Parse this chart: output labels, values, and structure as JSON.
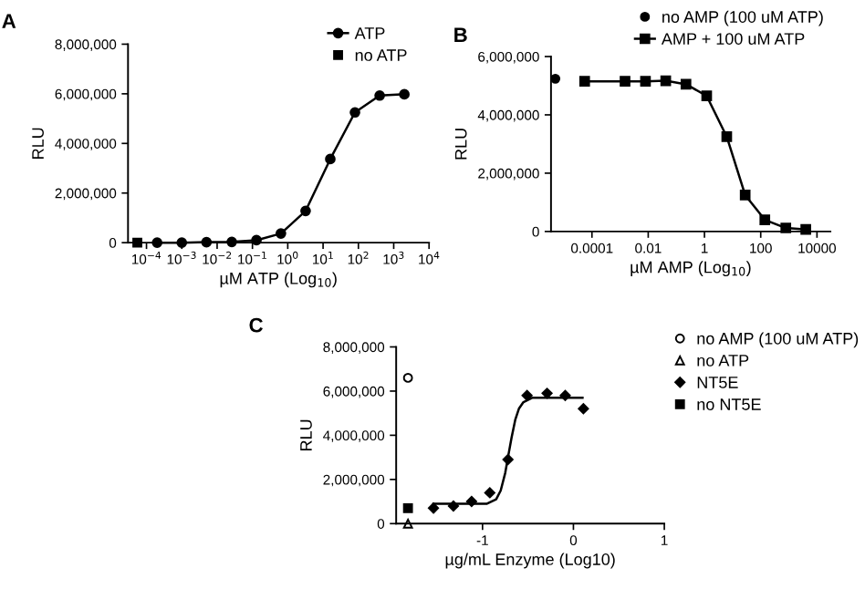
{
  "chart_data": [
    {
      "type": "line",
      "title": "A",
      "xlabel": "µM ATP (Log$_{10}$)",
      "ylabel": "RLU",
      "log": "x",
      "xlim": [
        3e-05,
        10000
      ],
      "ylim": [
        0,
        8000000
      ],
      "xticks": [
        {
          "value": 0.0001,
          "label": "10$^{−4}$"
        },
        {
          "value": 0.001,
          "label": "10$^{−3}$"
        },
        {
          "value": 0.01,
          "label": "10$^{−2}$"
        },
        {
          "value": 0.1,
          "label": "10$^{−1}$"
        },
        {
          "value": 1,
          "label": "10$^{0}$"
        },
        {
          "value": 10,
          "label": "10$^{1}$"
        },
        {
          "value": 100,
          "label": "10$^{2}$"
        },
        {
          "value": 1000,
          "label": "10$^{3}$"
        },
        {
          "value": 10000,
          "label": "10$^{4}$"
        }
      ],
      "yticks": [
        {
          "value": 0,
          "label": "0"
        },
        {
          "value": 2000000,
          "label": "2,000,000"
        },
        {
          "value": 4000000,
          "label": "4,000,000"
        },
        {
          "value": 6000000,
          "label": "6,000,000"
        },
        {
          "value": 8000000,
          "label": "8,000,000"
        }
      ],
      "legend": "top right",
      "grid": false,
      "series": [
        {
          "name": "ATP",
          "marker": "circle",
          "color": "#000000",
          "x": [
            0.0002,
            0.001,
            0.005,
            0.026,
            0.13,
            0.64,
            3.2,
            16,
            80,
            400,
            2000
          ],
          "values": [
            0,
            0,
            20000,
            30000,
            100000,
            370000,
            1280000,
            3370000,
            5250000,
            5930000,
            5980000
          ]
        },
        {
          "name": "no ATP",
          "type": "scatter",
          "marker": "square",
          "color": "#000000",
          "x": [
            5.5e-05
          ],
          "values": [
            0
          ]
        }
      ]
    },
    {
      "type": "line",
      "title": "B",
      "xlabel": "µM AMP (Log$_{10}$)",
      "ylabel": "RLU",
      "log": "x",
      "xlim": [
        3.5e-06,
        30000
      ],
      "ylim": [
        0,
        6000000
      ],
      "xticks": [
        {
          "value": 0.0001,
          "label": "0.0001"
        },
        {
          "value": 0.01,
          "label": "0.01"
        },
        {
          "value": 1,
          "label": "1"
        },
        {
          "value": 100,
          "label": "100"
        },
        {
          "value": 10000,
          "label": "10000"
        }
      ],
      "yticks": [
        {
          "value": 0,
          "label": "0"
        },
        {
          "value": 2000000,
          "label": "2,000,000"
        },
        {
          "value": 4000000,
          "label": "4,000,000"
        },
        {
          "value": 6000000,
          "label": "6,000,000"
        }
      ],
      "legend": "top right",
      "grid": false,
      "series": [
        {
          "name": "no AMP (100 uM ATP)",
          "type": "scatter",
          "marker": "circle",
          "color": "#000000",
          "x": [
            5e-06
          ],
          "values": [
            5240000
          ]
        },
        {
          "name": "AMP + 100 uM ATP",
          "marker": "square",
          "color": "#000000",
          "x": [
            5.5e-05,
            0.0015,
            0.008,
            0.042,
            0.22,
            1.2,
            6.2,
            28,
            140,
            780,
            4000
          ],
          "values": [
            5150000,
            5150000,
            5150000,
            5170000,
            5050000,
            4650000,
            3250000,
            1250000,
            400000,
            120000,
            70000
          ]
        }
      ]
    },
    {
      "type": "scatter",
      "title": "C",
      "xlabel": "µg/mL Enzyme (Log10)",
      "ylabel": "RLU",
      "xlim": [
        -1.95,
        1
      ],
      "ylim": [
        0,
        8000000
      ],
      "xticks": [
        -1,
        0,
        1
      ],
      "yticks": [
        {
          "value": 0,
          "label": "0"
        },
        {
          "value": 2000000,
          "label": "2,000,000"
        },
        {
          "value": 4000000,
          "label": "4,000,000"
        },
        {
          "value": 6000000,
          "label": "6,000,000"
        },
        {
          "value": 8000000,
          "label": "8,000,000"
        }
      ],
      "legend": "top right",
      "grid": false,
      "series": [
        {
          "name": "no AMP (100 uM ATP)",
          "marker": "circle",
          "color": "#000000",
          "x": [
            -1.82
          ],
          "values": [
            6600000
          ]
        },
        {
          "name": "no ATP",
          "marker": "triangle",
          "color": "#000000",
          "x": [
            -1.82
          ],
          "values": [
            0
          ]
        },
        {
          "name": "NT5E",
          "marker": "diamond",
          "color": "#000000",
          "x": [
            -1.54,
            -1.32,
            -1.12,
            -0.92,
            -0.72,
            -0.51,
            -0.29,
            -0.09,
            0.11
          ],
          "values": [
            700000,
            800000,
            1000000,
            1400000,
            2900000,
            5800000,
            5900000,
            5800000,
            5200000
          ]
        },
        {
          "name": "no NT5E",
          "marker": "square",
          "color": "#000000",
          "x": [
            -1.82
          ],
          "values": [
            700000
          ]
        },
        {
          "type": "line",
          "marker": "none",
          "color": "#000000",
          "x": [
            -1.54,
            -0.95,
            -0.85,
            -0.8,
            -0.75,
            -0.72,
            -0.68,
            -0.64,
            -0.6,
            -0.55,
            -0.45,
            0.1
          ],
          "values": [
            900000,
            900000,
            1100000,
            1500000,
            2300000,
            3000000,
            3900000,
            4700000,
            5200000,
            5500000,
            5700000,
            5700000
          ]
        }
      ]
    }
  ]
}
